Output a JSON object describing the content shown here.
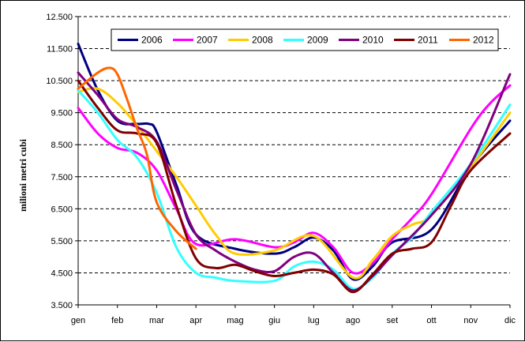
{
  "chart_data": {
    "type": "line",
    "title": "",
    "xlabel": "",
    "ylabel": "milioni metri cubi",
    "ylim": [
      3500,
      12500
    ],
    "yticks": [
      3500,
      4500,
      5500,
      6500,
      7500,
      8500,
      9500,
      10500,
      11500,
      12500
    ],
    "ytick_labels": [
      "3.500",
      "4.500",
      "5.500",
      "6.500",
      "7.500",
      "8.500",
      "9.500",
      "10.500",
      "11.500",
      "12.500"
    ],
    "categories": [
      "gen",
      "feb",
      "mar",
      "apr",
      "mag",
      "giu",
      "lug",
      "ago",
      "set",
      "ott",
      "nov",
      "dic"
    ],
    "grid": true,
    "legend_position": "top",
    "series": [
      {
        "name": "2006",
        "color": "#000080",
        "x": [
          0,
          0.5,
          1,
          1.5,
          1.8,
          2,
          2.5,
          3,
          4,
          5,
          5.5,
          6,
          6.5,
          7,
          7.5,
          8,
          9,
          10,
          11
        ],
        "y": [
          11650,
          10200,
          9250,
          9150,
          9150,
          8900,
          7250,
          5700,
          5250,
          5100,
          5300,
          5600,
          5200,
          4300,
          4700,
          5450,
          5850,
          7800,
          9250
        ]
      },
      {
        "name": "2007",
        "color": "#FF00FF",
        "x": [
          0,
          0.5,
          1,
          1.5,
          2,
          2.5,
          3,
          4,
          5,
          5.5,
          6,
          6.5,
          7,
          7.5,
          8,
          8.5,
          9,
          10,
          10.5,
          11
        ],
        "y": [
          9650,
          8850,
          8400,
          8250,
          7700,
          6500,
          5400,
          5550,
          5300,
          5450,
          5750,
          5300,
          4500,
          4800,
          5550,
          6200,
          6950,
          9000,
          9800,
          10350
        ]
      },
      {
        "name": "2008",
        "color": "#FFCC00",
        "x": [
          0,
          0.5,
          1,
          1.5,
          2,
          2.5,
          3,
          3.5,
          4,
          5,
          6,
          7,
          7.5,
          8,
          8.5,
          9,
          10,
          11
        ],
        "y": [
          10150,
          10250,
          9800,
          9100,
          8300,
          7500,
          6600,
          5700,
          5100,
          5200,
          5650,
          4350,
          4900,
          5650,
          6000,
          6300,
          7800,
          9500
        ]
      },
      {
        "name": "2009",
        "color": "#33FFFF",
        "x": [
          0,
          0.5,
          1,
          1.5,
          2,
          2.5,
          3,
          3.5,
          4,
          5,
          5.5,
          6,
          6.5,
          7,
          7.5,
          8,
          8.5,
          9,
          10,
          11
        ],
        "y": [
          10200,
          9500,
          8650,
          8100,
          7000,
          5300,
          4500,
          4350,
          4250,
          4250,
          4700,
          4850,
          4600,
          4000,
          4350,
          5100,
          5600,
          6400,
          7900,
          9750
        ]
      },
      {
        "name": "2010",
        "color": "#800080",
        "x": [
          0,
          0.5,
          1,
          1.5,
          2,
          2.5,
          3,
          3.5,
          4,
          4.5,
          5,
          5.5,
          6,
          6.5,
          7,
          7.5,
          8,
          9,
          10,
          11
        ],
        "y": [
          10750,
          10050,
          9300,
          9050,
          8600,
          7100,
          5700,
          5200,
          4850,
          4600,
          4550,
          5000,
          5100,
          4500,
          3950,
          4400,
          5050,
          6300,
          7900,
          10700
        ]
      },
      {
        "name": "2011",
        "color": "#800000",
        "x": [
          0,
          0.5,
          1,
          1.5,
          2,
          2.5,
          3,
          3.5,
          4,
          4.5,
          5,
          5.5,
          6,
          6.5,
          7,
          7.5,
          8,
          8.5,
          9,
          9.5,
          10,
          11
        ],
        "y": [
          10500,
          9650,
          8950,
          8850,
          8550,
          6600,
          4950,
          4650,
          4750,
          4550,
          4400,
          4500,
          4600,
          4450,
          3900,
          4450,
          5100,
          5250,
          5450,
          6600,
          7700,
          8850
        ]
      },
      {
        "name": "2012",
        "color": "#FF6600",
        "x": [
          0,
          0.5,
          0.8,
          1,
          1.25,
          1.5,
          1.75,
          2,
          2.5,
          3
        ],
        "y": [
          10250,
          10750,
          10900,
          10700,
          9900,
          9000,
          8200,
          6700,
          5800,
          5250
        ]
      }
    ]
  }
}
